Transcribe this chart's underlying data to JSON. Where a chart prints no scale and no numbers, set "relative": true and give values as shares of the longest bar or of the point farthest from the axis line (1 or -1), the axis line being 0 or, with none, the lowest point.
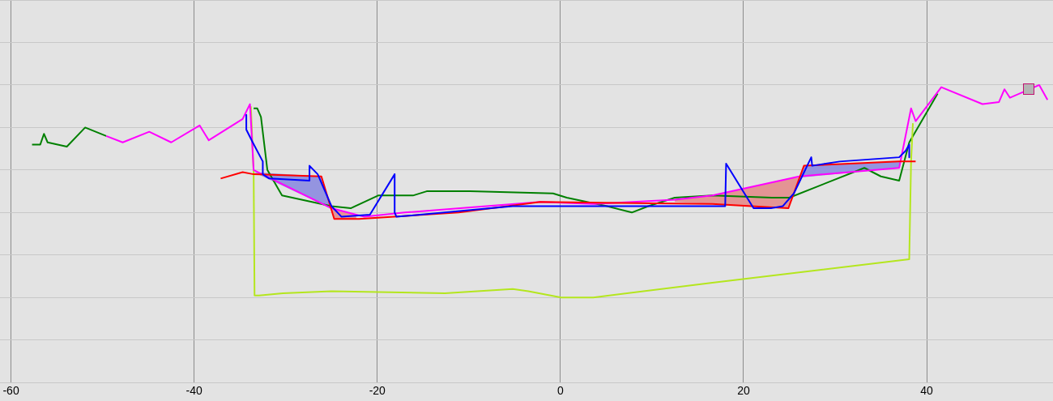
{
  "chart_data": {
    "type": "line",
    "relative": true,
    "xlim": [
      -61.2,
      53.8
    ],
    "xticks": [
      -60,
      -40,
      -20,
      0,
      20,
      40
    ],
    "grid": true,
    "marker": "none",
    "line_style": "solid",
    "series": [
      {
        "color": "#9494e0",
        "x": [
          -33.5,
          -26.1,
          -25.1
        ],
        "values": [
          null,
          null,
          null
        ],
        "lower": [
          0.59,
          0.44,
          0.42
        ],
        "upper": [
          0.59,
          0.57,
          0.42
        ]
      },
      {
        "color": "#e49494",
        "x": [
          -25.1,
          -24.7,
          -22.3
        ],
        "values": [
          null,
          null,
          null
        ],
        "lower": [
          0.42,
          0.37,
          0.37
        ],
        "upper": [
          0.42,
          0.42,
          0.39
        ]
      },
      {
        "color": "#e49494",
        "x": [
          12.5,
          16.6,
          24.9,
          26.2
        ],
        "values": [
          null,
          null,
          null,
          null
        ],
        "lower": [
          0.45,
          0.44,
          0.42,
          0.565
        ],
        "upper": [
          0.46,
          0.48,
          0.56,
          0.565
        ]
      },
      {
        "color": "#9494e0",
        "x": [
          26.2,
          26.6,
          37.0,
          37.14
        ],
        "values": [
          null,
          null,
          null,
          null
        ],
        "lower": [
          0.565,
          0.566,
          0.61,
          0.64
        ],
        "upper": [
          0.565,
          0.62,
          0.64,
          0.64
        ]
      },
      {
        "color": "#008000",
        "x": [
          -57.7,
          -56.8,
          -56.4,
          -56.0,
          -53.9,
          -51.9,
          -49.6,
          -41,
          -33.5,
          -33.1,
          -32.7,
          -32.0,
          -30.4,
          -25.0,
          -22.9,
          -19.9,
          -16.1,
          -14.6,
          -11.4,
          -9.9,
          -0.8,
          0.7,
          5.1,
          7.8,
          9.6,
          12.5,
          16.6,
          23.1,
          25.0,
          33.2,
          35.0,
          37.0,
          38.1,
          41.2
        ],
        "values": [
          0.72,
          0.72,
          0.77,
          0.73,
          0.71,
          0.8,
          0.76,
          null,
          0.89,
          0.89,
          0.85,
          0.6,
          0.48,
          0.43,
          0.42,
          0.48,
          0.48,
          0.5,
          0.5,
          0.5,
          0.49,
          0.47,
          0.43,
          0.4,
          0.43,
          0.47,
          0.48,
          0.47,
          0.47,
          0.61,
          0.57,
          0.55,
          0.73,
          0.96
        ]
      },
      {
        "color": "#b4e61e",
        "x": [
          -33.8,
          -33.5,
          -33.4,
          -32.9,
          -30.3,
          -25.0,
          -12.6,
          -5.2,
          -3.5,
          0.1,
          3.6,
          16.6,
          38.1,
          38.3,
          38.5
        ],
        "values": [
          0.9,
          0.59,
          0.01,
          0.01,
          0.02,
          0.03,
          0.02,
          0.04,
          0.03,
          0,
          0,
          0.07,
          0.18,
          0.64,
          0.82
        ]
      },
      {
        "color": "#ff00ff",
        "x": [
          -49.6,
          -47.8,
          -44.9,
          -42.5,
          -39.4,
          -38.4,
          -34.7,
          -33.9,
          -33.5,
          -25.0,
          -22.3,
          -21.4,
          -17.0,
          -8.1,
          -2.2,
          3.6,
          12.5,
          16.6,
          26.1,
          37.0,
          38.3,
          38.8,
          41.6,
          46.1,
          47.9,
          48.5,
          49.1,
          52.3,
          53.2
        ],
        "values": [
          0.76,
          0.73,
          0.78,
          0.73,
          0.81,
          0.74,
          0.84,
          0.91,
          0.6,
          0.42,
          0.39,
          0.38,
          0.4,
          0.43,
          0.45,
          0.44,
          0.46,
          0.48,
          0.57,
          0.61,
          0.89,
          0.83,
          0.99,
          0.91,
          0.92,
          0.98,
          0.94,
          1.0,
          0.93
        ]
      },
      {
        "color": "#ff0000",
        "x": [
          -37.1,
          -34.7,
          -33.5,
          -26.1,
          -24.7,
          -22.0,
          -11.1,
          -2.2,
          16.6,
          24.9,
          26.6,
          37.0,
          38.8
        ],
        "values": [
          0.56,
          0.59,
          0.58,
          0.57,
          0.37,
          0.37,
          0.4,
          0.45,
          0.44,
          0.42,
          0.62,
          0.64,
          0.64
        ]
      },
      {
        "color": "#0000ff",
        "x": [
          -34.3,
          -34.3,
          -33.6,
          -32.5,
          -32.5,
          -31.8,
          -27.4,
          -27.4,
          -26.5,
          -25.0,
          -23.9,
          -20.8,
          -18.1,
          -18.1,
          -17.9,
          -5.2,
          13.4,
          18.0,
          18.1,
          21.1,
          23.0,
          24.3,
          25.5,
          27.4,
          27.5,
          30.5,
          37.0,
          37.7,
          38.1,
          38.1
        ],
        "values": [
          0.86,
          0.79,
          0.73,
          0.64,
          0.58,
          0.56,
          0.55,
          0.62,
          0.58,
          0.43,
          0.38,
          0.39,
          0.58,
          0.4,
          0.38,
          0.43,
          0.43,
          0.43,
          0.63,
          0.42,
          0.42,
          0.43,
          0.49,
          0.66,
          0.62,
          0.64,
          0.66,
          0.69,
          0.72,
          0.66
        ]
      }
    ]
  }
}
